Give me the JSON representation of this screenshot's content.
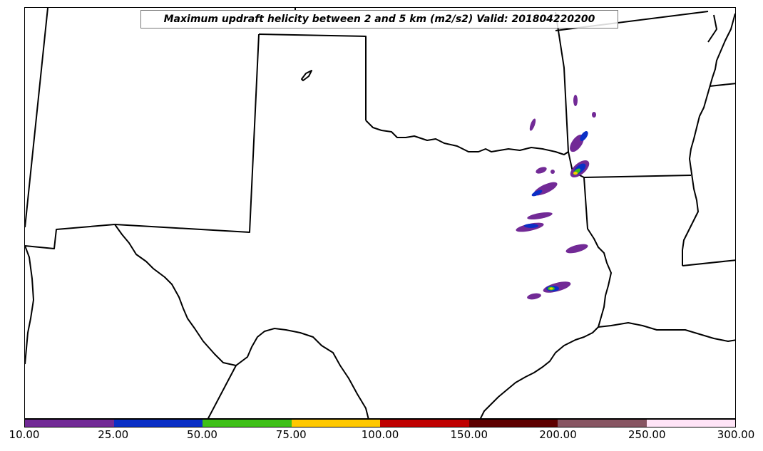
{
  "title": "Maximum updraft helicity between 2 and 5 km (m2/s2) Valid: 201804220200",
  "colorbar": {
    "colors": [
      "#722a96",
      "#0a2fc6",
      "#3ec018",
      "#ffc800",
      "#bf0000",
      "#5e0000",
      "#875562",
      "#ffe4f7"
    ],
    "tick_labels": [
      "10.00",
      "25.00",
      "50.00",
      "75.00",
      "100.00",
      "150.00",
      "200.00",
      "250.00",
      "300.00"
    ]
  }
}
